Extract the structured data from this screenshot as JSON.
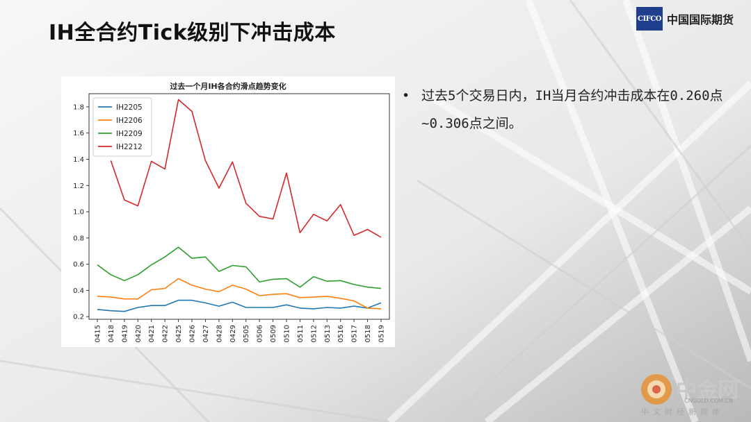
{
  "slide": {
    "title": "IH全合约Tick级别下冲击成本",
    "bullet": "过去5个交易日内，IH当月合约冲击成本在0.260点~0.306点之间。"
  },
  "brand": {
    "logo_text": "CIFCO",
    "name": "中国国际期货",
    "logo_color": "#1f3f8c"
  },
  "watermark": {
    "name": "中金网",
    "url": "CNGOLD.COM.CN",
    "subtitle": "中文财经新媒体",
    "icon": "cngold-logo-icon"
  },
  "chart_data": {
    "type": "line",
    "title": "过去一个月IH各合约滑点趋势变化",
    "xlabel": "",
    "ylabel": "",
    "x": [
      "0415",
      "0418",
      "0419",
      "0420",
      "0421",
      "0422",
      "0425",
      "0426",
      "0427",
      "0428",
      "0429",
      "0505",
      "0506",
      "0509",
      "0510",
      "0511",
      "0512",
      "0513",
      "0516",
      "0517",
      "0518",
      "0519"
    ],
    "ylim": [
      0.18,
      1.9
    ],
    "yticks": [
      "0.2",
      "0.4",
      "0.6",
      "0.8",
      "1.0",
      "1.2",
      "1.4",
      "1.6",
      "1.8"
    ],
    "legend_position": "top-left",
    "grid": false,
    "series": [
      {
        "name": "IH2205",
        "color": "#1f77b4",
        "values": [
          0.255,
          0.245,
          0.24,
          0.27,
          0.285,
          0.285,
          0.325,
          0.325,
          0.305,
          0.28,
          0.31,
          0.27,
          0.27,
          0.27,
          0.29,
          0.265,
          0.26,
          0.27,
          0.265,
          0.28,
          0.265,
          0.306
        ]
      },
      {
        "name": "IH2206",
        "color": "#ff7f0e",
        "values": [
          0.355,
          0.35,
          0.335,
          0.335,
          0.405,
          0.415,
          0.49,
          0.44,
          0.41,
          0.39,
          0.44,
          0.41,
          0.36,
          0.37,
          0.375,
          0.345,
          0.35,
          0.355,
          0.34,
          0.32,
          0.265,
          0.26
        ]
      },
      {
        "name": "IH2209",
        "color": "#2ca02c",
        "values": [
          0.595,
          0.52,
          0.475,
          0.52,
          0.595,
          0.655,
          0.73,
          0.645,
          0.655,
          0.545,
          0.59,
          0.58,
          0.465,
          0.485,
          0.49,
          0.425,
          0.505,
          0.47,
          0.475,
          0.445,
          0.425,
          0.415
        ]
      },
      {
        "name": "IH2212",
        "color": "#d62728",
        "values": [
          null,
          1.39,
          1.09,
          1.045,
          1.385,
          1.325,
          1.855,
          1.765,
          1.39,
          1.18,
          1.38,
          1.065,
          0.965,
          0.945,
          1.295,
          0.84,
          0.98,
          0.93,
          1.055,
          0.82,
          0.865,
          0.805
        ]
      }
    ]
  }
}
